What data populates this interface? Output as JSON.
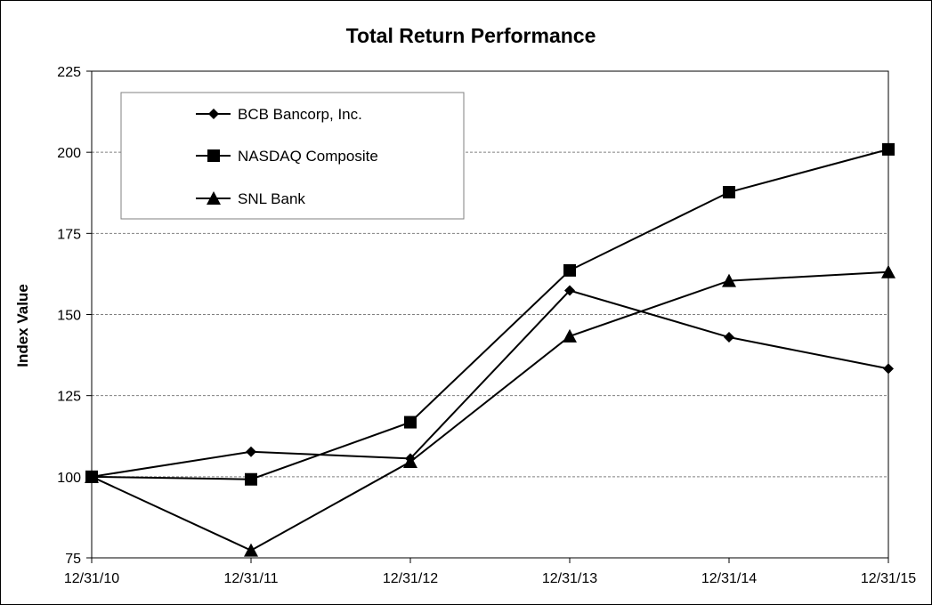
{
  "chart_data": {
    "type": "line",
    "title": "Total Return Performance",
    "xlabel": "",
    "ylabel": "Index Value",
    "categories": [
      "12/31/10",
      "12/31/11",
      "12/31/12",
      "12/31/13",
      "12/31/14",
      "12/31/15"
    ],
    "ylim": [
      75,
      225
    ],
    "yticks": [
      75,
      100,
      125,
      150,
      175,
      200,
      225
    ],
    "grid": "horizontal dashed",
    "legend_position": "top-left",
    "series": [
      {
        "name": "BCB Bancorp, Inc.",
        "marker": "diamond",
        "values": [
          100,
          107.7,
          105.6,
          157.4,
          143.0,
          133.3
        ]
      },
      {
        "name": "NASDAQ Composite",
        "marker": "square",
        "values": [
          100,
          99.2,
          116.8,
          163.6,
          187.7,
          200.9
        ]
      },
      {
        "name": "SNL Bank",
        "marker": "triangle",
        "values": [
          100,
          77.3,
          104.6,
          143.3,
          160.4,
          163.1
        ]
      }
    ],
    "colors": {
      "line": "#000000",
      "grid": "#808080",
      "frame": "#000000",
      "legend_border": "#808080"
    }
  }
}
